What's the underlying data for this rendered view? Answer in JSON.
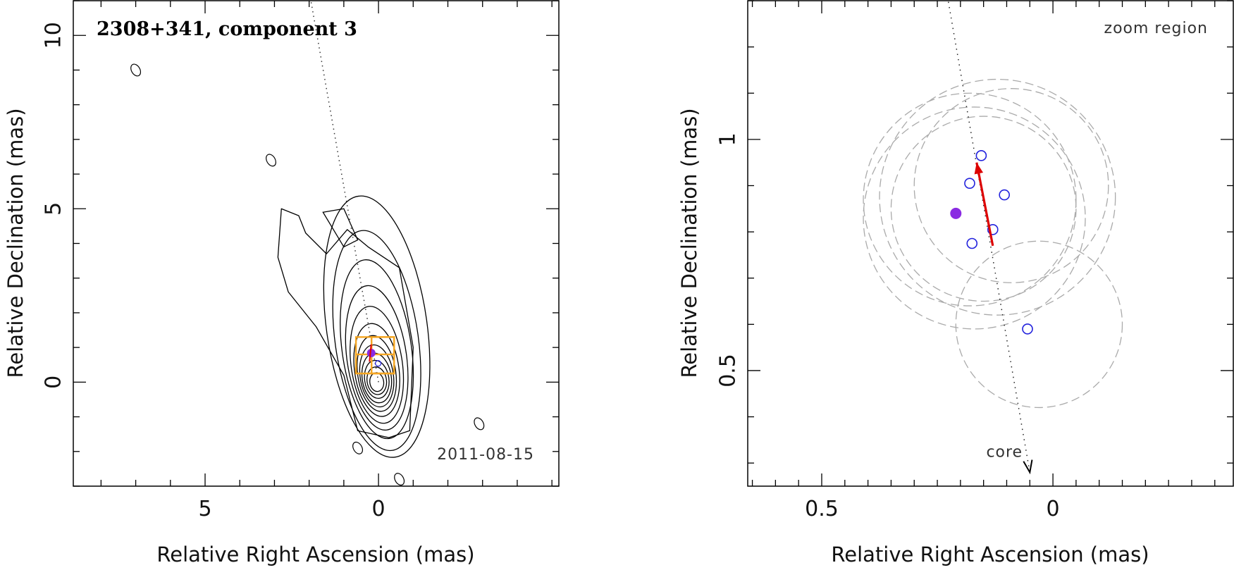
{
  "chart_data": [
    {
      "type": "contour",
      "title": "2308+341, component 3",
      "date": "2011-08-15",
      "xlabel": "Relative Right Ascension (mas)",
      "ylabel": "Relative Declination (mas)",
      "xlim": [
        8.8,
        -5.2
      ],
      "ylim": [
        -3.0,
        11.0
      ],
      "x_major_ticks": [
        5,
        0
      ],
      "y_major_ticks": [
        0,
        5,
        10
      ],
      "x_minor_step": 1,
      "y_minor_step": 1,
      "jet_direction_line": {
        "from": [
          0.0,
          0.0
        ],
        "to": [
          1.95,
          11.0
        ]
      },
      "zoom_boxes": [
        {
          "x0": 0.65,
          "x1": -0.45,
          "y0": 0.25,
          "y1": 1.3
        },
        {
          "x0": 0.65,
          "x1": -0.45,
          "y0": 0.25,
          "y1": 0.8
        },
        {
          "x0": 0.2,
          "x1": -0.45,
          "y0": 0.25,
          "y1": 1.3
        }
      ],
      "component_position": [
        0.21,
        0.84
      ],
      "colors": {
        "contour": "#000000",
        "zoom_box": "#F5A623",
        "component": "#8A2BE2",
        "markers": "#2222DD"
      }
    },
    {
      "type": "scatter",
      "title": "zoom region",
      "xlabel": "Relative Right Ascension (mas)",
      "ylabel": "Relative Declination (mas)",
      "xlim": [
        0.66,
        -0.39
      ],
      "ylim": [
        0.25,
        1.3
      ],
      "x_major_ticks": [
        0.5,
        0
      ],
      "y_major_ticks": [
        0.5,
        1
      ],
      "x_minor_step": 0.05,
      "y_minor_step": 0.1,
      "component_mean": [
        0.21,
        0.84
      ],
      "epoch_positions": [
        {
          "x": 0.155,
          "y": 0.965
        },
        {
          "x": 0.18,
          "y": 0.905
        },
        {
          "x": 0.105,
          "y": 0.88
        },
        {
          "x": 0.13,
          "y": 0.805
        },
        {
          "x": 0.175,
          "y": 0.775
        },
        {
          "x": 0.055,
          "y": 0.59
        }
      ],
      "error_circles": [
        {
          "x": 0.12,
          "y": 0.875,
          "r": 0.255
        },
        {
          "x": 0.17,
          "y": 0.83,
          "r": 0.24
        },
        {
          "x": 0.09,
          "y": 0.9,
          "r": 0.21
        },
        {
          "x": 0.15,
          "y": 0.85,
          "r": 0.2
        },
        {
          "x": 0.18,
          "y": 0.87,
          "r": 0.23
        },
        {
          "x": 0.03,
          "y": 0.6,
          "r": 0.18
        }
      ],
      "velocity_arrow": {
        "from": [
          0.13,
          0.77
        ],
        "to": [
          0.165,
          0.95
        ]
      },
      "core_direction_line": {
        "from": [
          0.23,
          1.32
        ],
        "to": [
          0.05,
          0.28
        ]
      },
      "core_label": "core",
      "colors": {
        "arrow": "#DD0000",
        "component": "#8A2BE2",
        "markers": "#2222DD",
        "circles": "#AAAAAA"
      }
    }
  ]
}
